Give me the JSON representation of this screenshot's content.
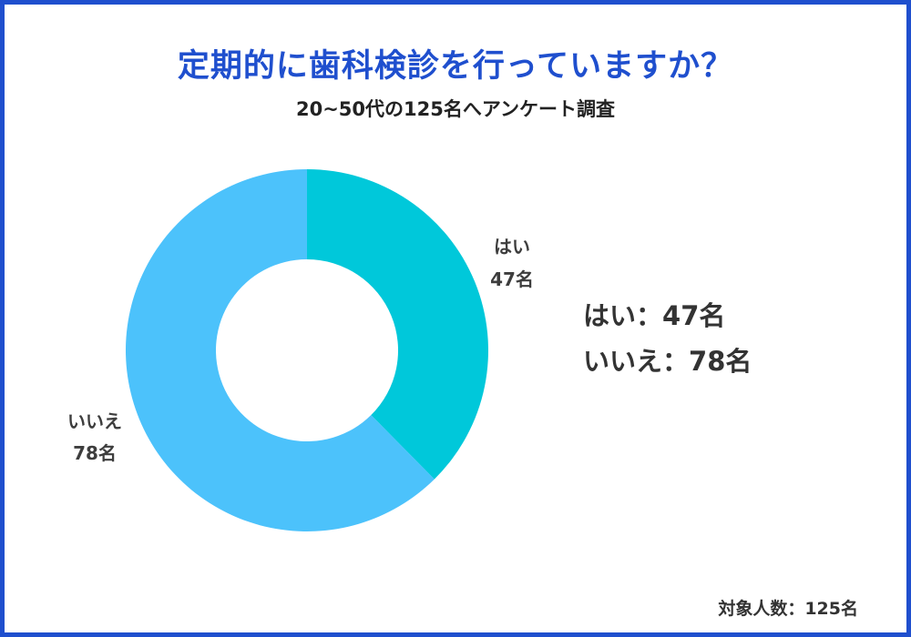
{
  "title": "定期的に歯科検診を行っていますか？",
  "subtitle": "20~50代の125名へアンケート調査",
  "legend": [
    {
      "label": "はい",
      "separator": "：",
      "value": "47名"
    },
    {
      "label": "いいえ",
      "separator": "：",
      "value": "78名"
    }
  ],
  "footer": "対象人数：125名",
  "colors": {
    "frame": "#1f4fce",
    "title": "#1f4fce",
    "slice_yes": "#00c8da",
    "slice_no": "#4cc2fb"
  },
  "chart_data": {
    "type": "pie",
    "variant": "donut",
    "title": "定期的に歯科検診を行っていますか？",
    "subtitle": "20~50代の125名へアンケート調査",
    "categories": [
      "はい",
      "いいえ"
    ],
    "values": [
      47,
      78
    ],
    "value_labels": [
      "47名",
      "78名"
    ],
    "total": 125,
    "start": "top, clockwise"
  }
}
